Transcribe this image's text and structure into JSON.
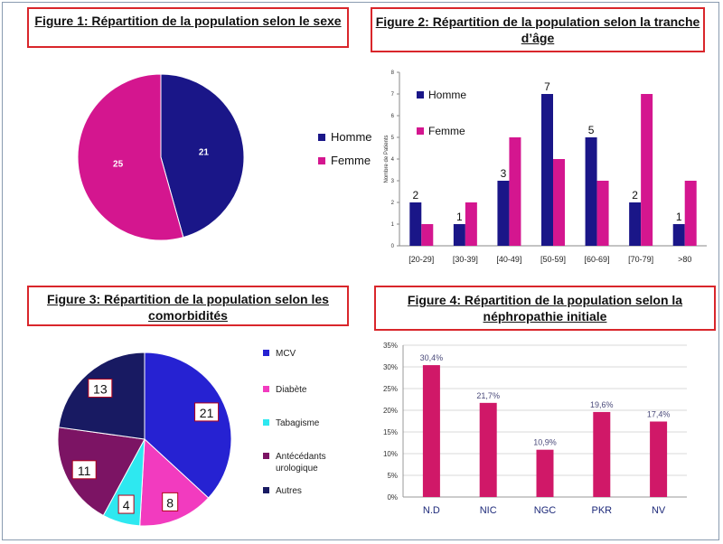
{
  "figures": [
    {
      "title": "Figure 1: Répartition de la population selon le sexe",
      "chart_data": {
        "type": "pie",
        "labels": [
          "Homme",
          "Femme"
        ],
        "values": [
          21,
          25
        ],
        "colors": [
          "#1a1688",
          "#d4168f"
        ],
        "legend_position": "right"
      }
    },
    {
      "title": "Figure 2: Répartition de la population selon la tranche d’âge",
      "chart_data": {
        "type": "bar",
        "categories": [
          "[20-29]",
          "[30-39]",
          "[40-49]",
          "[50-59]",
          "[60-69]",
          "[70-79]",
          ">80"
        ],
        "series": [
          {
            "name": "Homme",
            "values": [
              2,
              1,
              3,
              7,
              5,
              2,
              1
            ],
            "color": "#1a1688"
          },
          {
            "name": "Femme",
            "values": [
              1,
              2,
              5,
              4,
              3,
              7,
              3
            ],
            "color": "#d4168f"
          }
        ],
        "data_labels_series0": [
          "2",
          "1",
          "3",
          "7",
          "5",
          "2",
          "1"
        ],
        "ylabel": "Nombre de Patients",
        "ylim": [
          0,
          8
        ],
        "yticks": [
          "0",
          "1",
          "2",
          "3",
          "4",
          "5",
          "6",
          "7",
          "8"
        ],
        "legend_position": "top-left"
      }
    },
    {
      "title": "Figure 3: Répartition de la population selon les comorbidités",
      "chart_data": {
        "type": "pie",
        "labels": [
          "MCV",
          "Diabète",
          "Tabagisme",
          "Antécédants urologique",
          "Autres"
        ],
        "values": [
          21,
          8,
          4,
          11,
          13
        ],
        "colors": [
          "#2622d2",
          "#f23bbf",
          "#2ee8f0",
          "#7c1464",
          "#181a62"
        ],
        "legend_position": "right"
      }
    },
    {
      "title": "Figure 4: Répartition de la population selon la néphropathie initiale",
      "chart_data": {
        "type": "bar",
        "categories": [
          "N.D",
          "NIC",
          "NGC",
          "PKR",
          "NV"
        ],
        "values": [
          30.4,
          21.7,
          10.9,
          19.6,
          17.4
        ],
        "data_labels": [
          "30,4%",
          "21,7%",
          "10,9%",
          "19,6%",
          "17,4%"
        ],
        "color": "#d01868",
        "ylim": [
          0,
          35
        ],
        "yticks": [
          "0%",
          "5%",
          "10%",
          "15%",
          "20%",
          "25%",
          "30%",
          "35%"
        ]
      }
    }
  ]
}
